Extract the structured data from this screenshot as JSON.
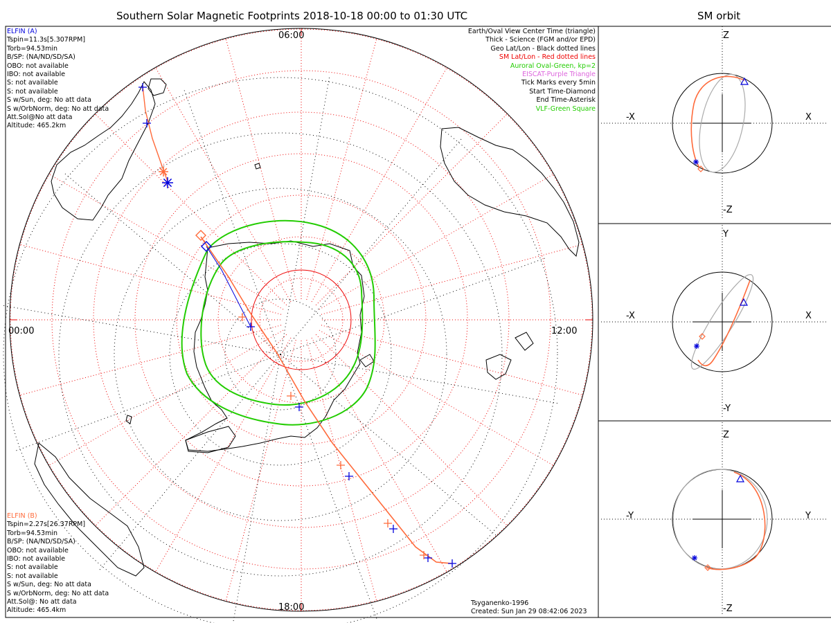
{
  "title": "Southern Solar Magnetic Footprints 2018-10-18 00:00 to 01:30 UTC",
  "orbit_title": "SM orbit",
  "mlt_labels": {
    "top": "06:00",
    "right": "12:00",
    "bottom": "18:00",
    "left": "00:00"
  },
  "elfin_a": {
    "name": "ELFIN (A)",
    "color": "#0000dd",
    "lines": [
      "Tspin=11.3s[5.307RPM]",
      "Torb=94.53min",
      "B/SP: (NA/ND/SD/SA)",
      "OBO: not available",
      "IBO: not available",
      "S: not available",
      "S: not available",
      "S w/Sun, deg: No att data",
      "S w/OrbNorm, deg: No att data",
      "Att.Sol@No att data",
      "Altitude: 465.2km"
    ]
  },
  "elfin_b": {
    "name": "ELFIN (B)",
    "color": "#ff6a3a",
    "lines": [
      "Tspin=2.27s[26.37RPM]",
      "Torb=94.53min",
      "B/SP: (NA/ND/SD/SA)",
      "OBO: not available",
      "IBO: not available",
      "S: not available",
      "S: not available",
      "S w/Sun, deg: No att data",
      "S w/OrbNorm, deg: No att data",
      "Att.Sol@: No att data",
      "Altitude: 465.4km"
    ]
  },
  "legend": [
    {
      "text": "Earth/Oval View Center Time (triangle)",
      "color": "#000000"
    },
    {
      "text": "Thick - Science (FGM and/or EPD)",
      "color": "#000000"
    },
    {
      "text": "Geo Lat/Lon - Black dotted lines",
      "color": "#000000"
    },
    {
      "text": "SM Lat/Lon - Red dotted lines",
      "color": "#ee0000"
    },
    {
      "text": "Auroral Oval-Green, kp=2",
      "color": "#22cc00"
    },
    {
      "text": "EISCAT-Purple Triangle",
      "color": "#dd66dd"
    },
    {
      "text": "Tick Marks every 5min",
      "color": "#000000"
    },
    {
      "text": "Start Time-Diamond",
      "color": "#000000"
    },
    {
      "text": "End Time-Asterisk",
      "color": "#000000"
    },
    {
      "text": "VLF-Green Square",
      "color": "#22cc00"
    }
  ],
  "model": "Tsyganenko-1996",
  "created": "Created: Sun Jan 29 08:42:06 2023",
  "panels": [
    {
      "top": "Z",
      "bottom": "-Z",
      "left": "-X",
      "right": "X"
    },
    {
      "top": "Y",
      "bottom": "-Y",
      "left": "-X",
      "right": "X"
    },
    {
      "top": "Z",
      "bottom": "-Z",
      "left": "-Y",
      "right": "Y"
    }
  ],
  "colors": {
    "sm_grid": "#ee0000",
    "oval": "#22cc00",
    "track_a": "#0000dd",
    "track_b": "#ff6a3a",
    "orbit_gray": "#aaaaaa"
  },
  "chart_data": {
    "type": "scatter",
    "title": "Southern Solar Magnetic Footprints 2018-10-18 00:00 to 01:30 UTC",
    "projection": "southern polar, SM coordinates",
    "axis_labels": [
      "06:00",
      "12:00",
      "18:00",
      "00:00"
    ],
    "kp": 2,
    "series": [
      {
        "name": "ELFIN (A)",
        "marker": "blue cross ticks every 5min"
      },
      {
        "name": "ELFIN (B)",
        "marker": "red track, start diamond, end asterisk"
      }
    ]
  }
}
